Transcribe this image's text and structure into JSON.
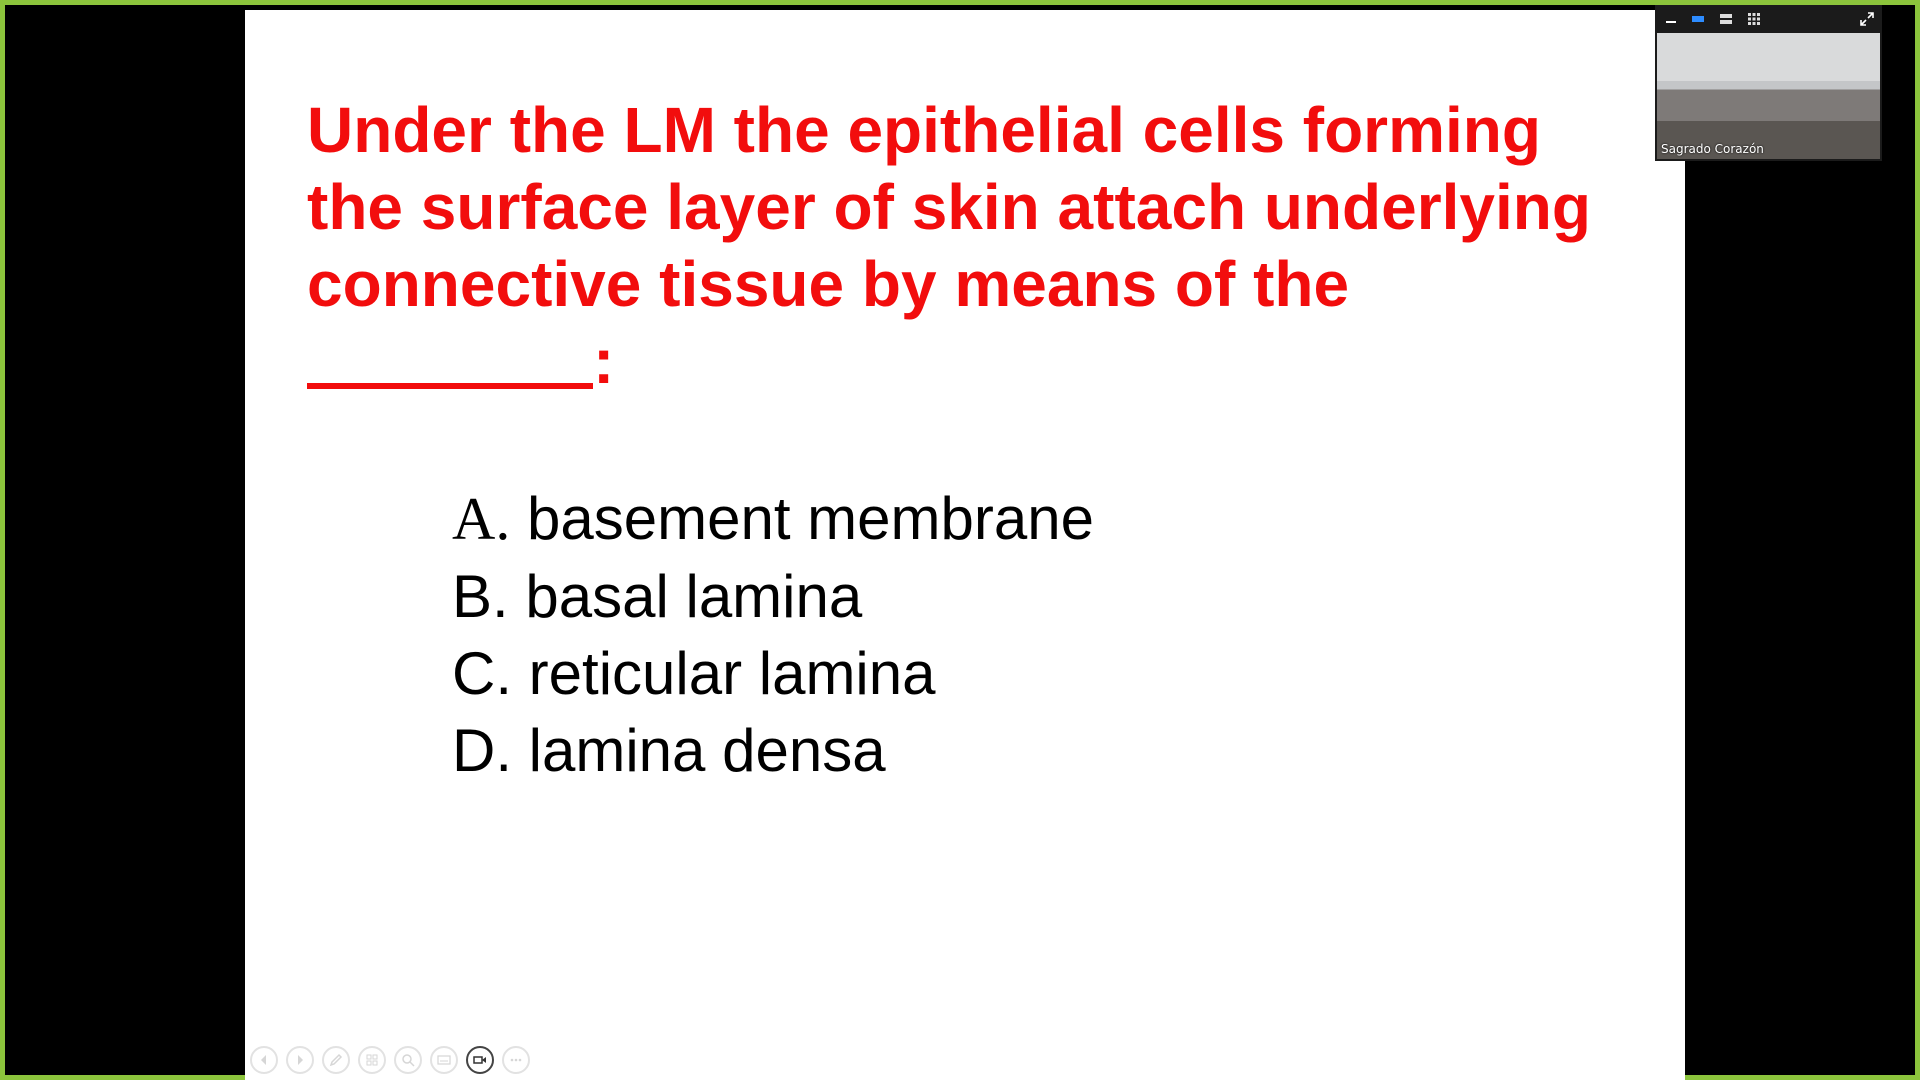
{
  "slide": {
    "question_lines": [
      "Under the LM the epithelial cells forming",
      "the surface layer of skin attach underlying",
      "connective tissue by means of the"
    ],
    "question_end": ":",
    "options": [
      {
        "letter": "A.",
        "text": "basement membrane"
      },
      {
        "letter": "B.",
        "text": "basal lamina"
      },
      {
        "letter": "C.",
        "text": "reticular lamina"
      },
      {
        "letter": "D.",
        "text": "lamina densa"
      }
    ],
    "question_color": "#f20d0d",
    "text_color": "#000000"
  },
  "share_border_color": "#8cc43c",
  "slide_toolbar": {
    "buttons": [
      {
        "icon": "previous-icon"
      },
      {
        "icon": "next-icon"
      },
      {
        "icon": "pen-icon"
      },
      {
        "icon": "slides-icon"
      },
      {
        "icon": "zoom-icon"
      },
      {
        "icon": "subtitles-icon"
      },
      {
        "icon": "camera-icon"
      },
      {
        "icon": "more-icon"
      }
    ]
  },
  "video_panel": {
    "participant_name": "Sagrado Corazón",
    "controls": [
      "minimize-icon",
      "speaker-view-icon",
      "strip-view-icon",
      "gallery-view-icon",
      "fullscreen-icon"
    ],
    "accent_color": "#2d8cff"
  }
}
